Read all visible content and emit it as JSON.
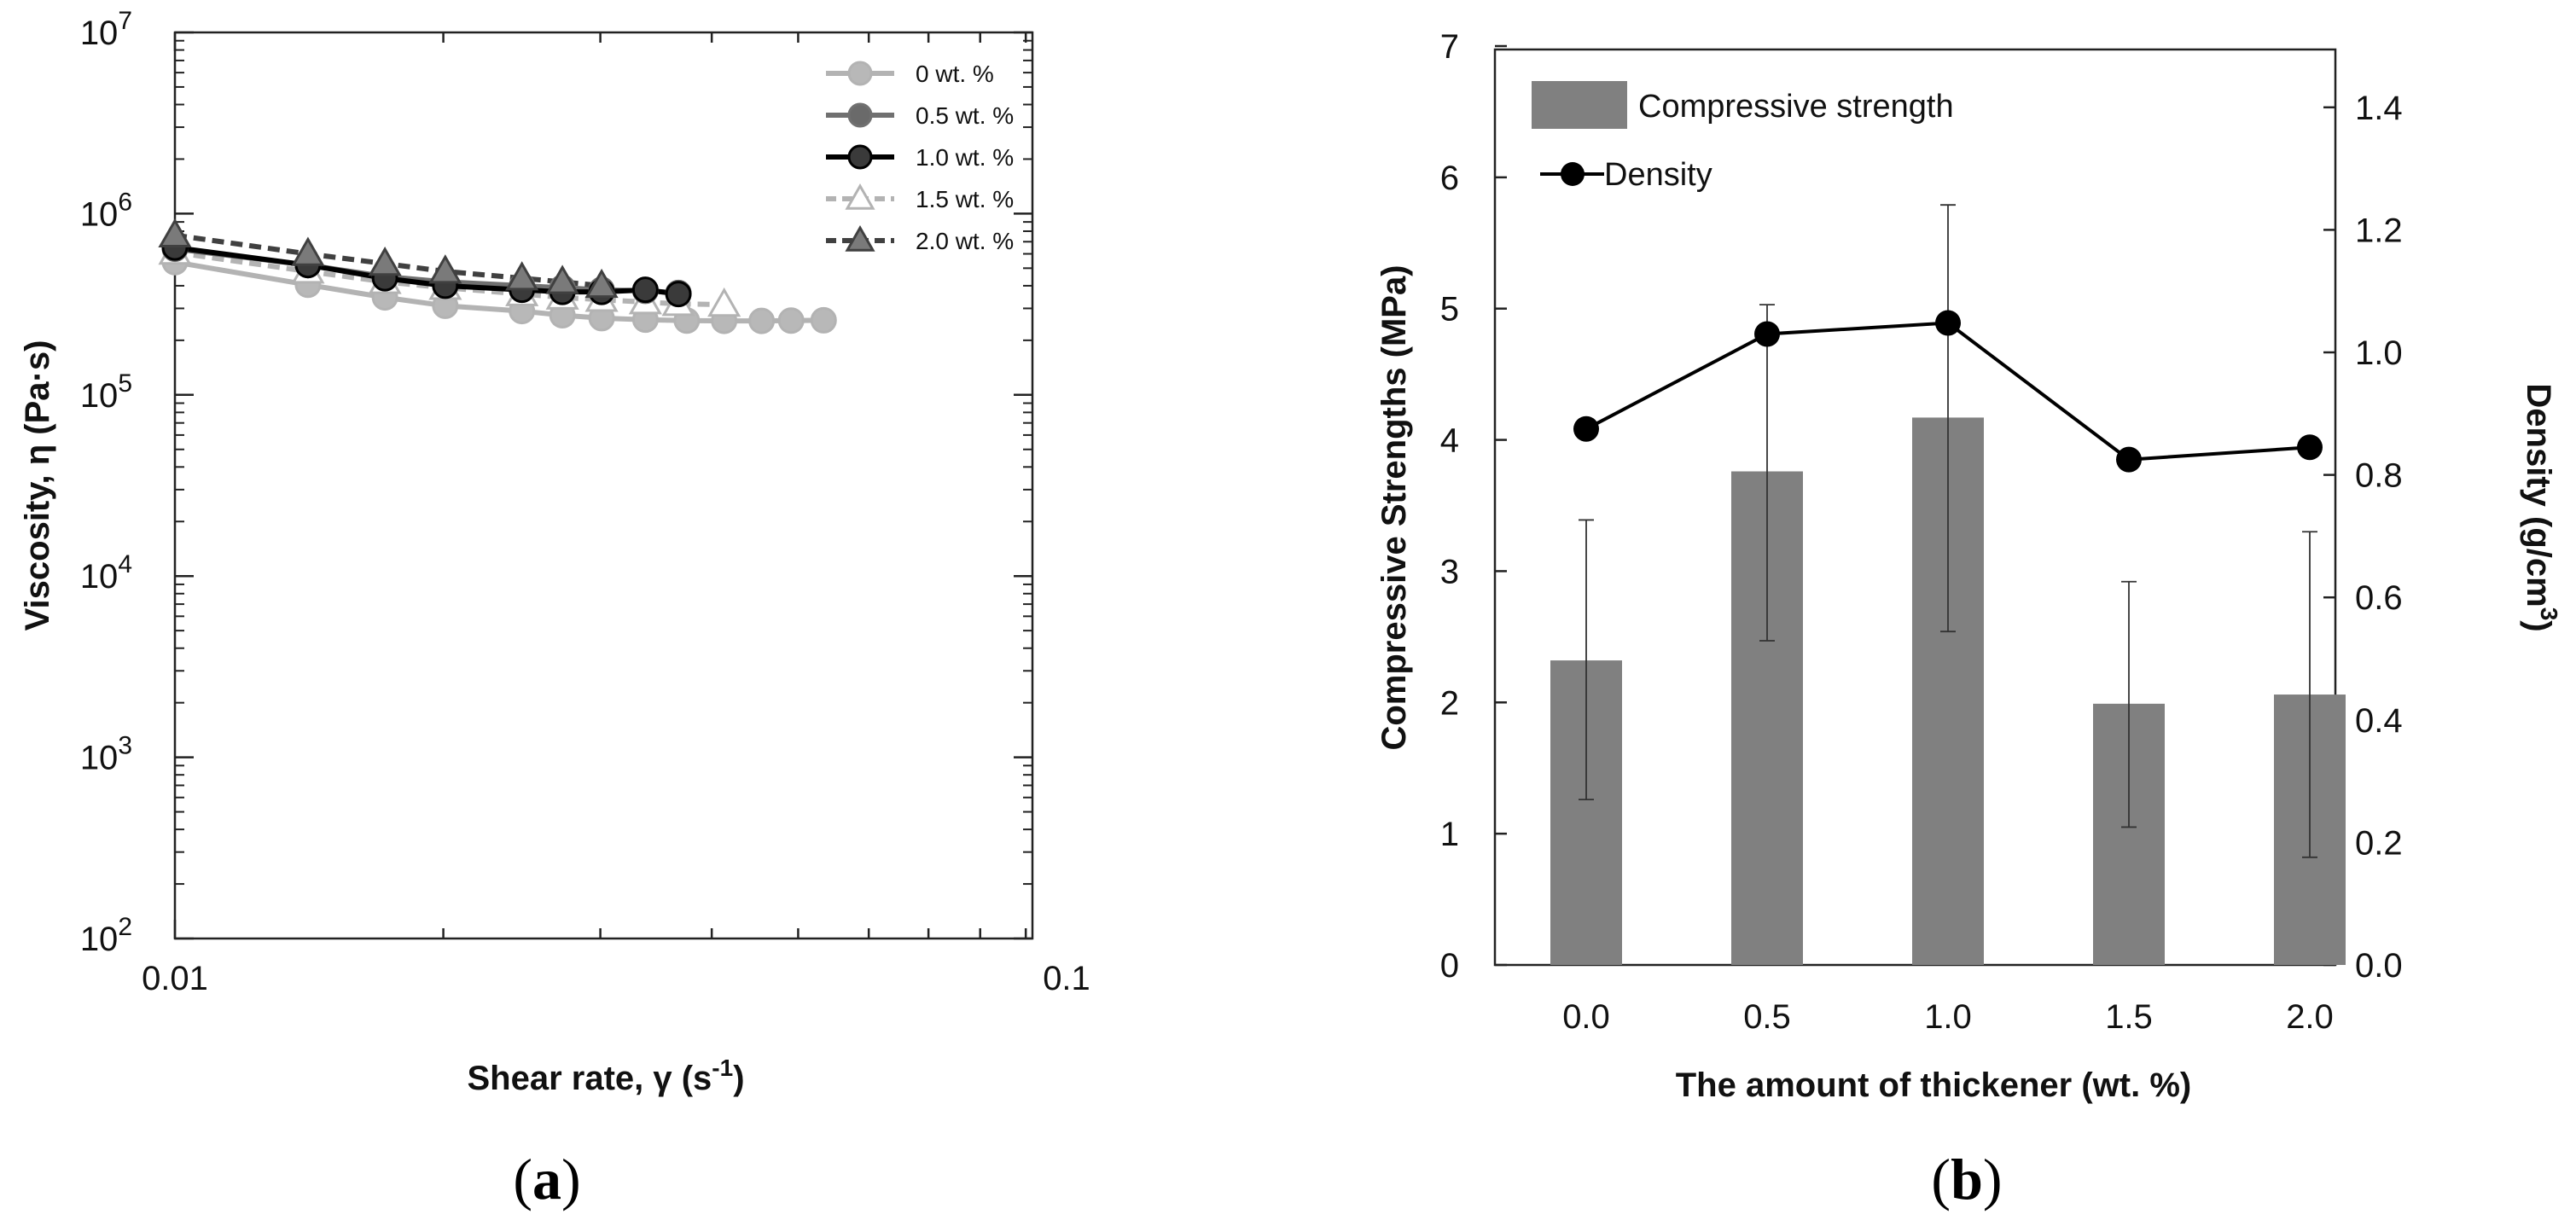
{
  "figure": {
    "panel_a_label": "(a)",
    "panel_a_letter": "a",
    "panel_b_label": "(b)",
    "panel_b_letter": "b"
  },
  "chart_data": [
    {
      "type": "line",
      "panel": "a",
      "xscale": "log",
      "yscale": "log",
      "xlabel": "Shear rate, γ (s",
      "xlabel_sup": "-1",
      "xlabel_close": ")",
      "ylabel": "Viscosity, η (Pa·s)",
      "xlim": [
        0.01,
        0.1
      ],
      "ylim": [
        100,
        10000000
      ],
      "x_ticks": [
        {
          "value": 0.01,
          "label": "0.01"
        },
        {
          "value": 0.1,
          "label": "0.1"
        }
      ],
      "y_ticks": [
        {
          "value": 100,
          "base": "10",
          "exp": "2"
        },
        {
          "value": 1000,
          "base": "10",
          "exp": "3"
        },
        {
          "value": 10000,
          "base": "10",
          "exp": "4"
        },
        {
          "value": 100000,
          "base": "10",
          "exp": "5"
        },
        {
          "value": 1000000,
          "base": "10",
          "exp": "6"
        },
        {
          "value": 10000000,
          "base": "10",
          "exp": "7"
        }
      ],
      "legend_position": "top-right",
      "series": [
        {
          "name": "0 wt. %",
          "color": "#b3b3b3",
          "fill": "#b8b8b8",
          "marker": "circle",
          "dash": "none",
          "x": [
            0.01,
            0.0141,
            0.0172,
            0.0201,
            0.0245,
            0.0272,
            0.0301,
            0.0337,
            0.0375,
            0.0413,
            0.0455,
            0.0491,
            0.0534
          ],
          "y": [
            540000,
            405000,
            345000,
            310000,
            290000,
            275000,
            265000,
            260000,
            257000,
            256000,
            256000,
            257000,
            258000
          ]
        },
        {
          "name": "0.5 wt. %",
          "color": "#707070",
          "fill": "#6a6a6a",
          "marker": "circle",
          "dash": "none",
          "x": [
            0.01,
            0.0141,
            0.0172,
            0.0201,
            0.0245,
            0.0272,
            0.0301,
            0.0337,
            0.0367
          ],
          "y": [
            640000,
            520000,
            450000,
            420000,
            400000,
            390000,
            380000,
            375000,
            365000
          ]
        },
        {
          "name": "1.0 wt. %",
          "color": "#000000",
          "fill": "#3a3a3a",
          "marker": "circle",
          "dash": "none",
          "x": [
            0.01,
            0.0141,
            0.0172,
            0.0201,
            0.0245,
            0.0272,
            0.0301,
            0.0337,
            0.0367
          ],
          "y": [
            650000,
            520000,
            440000,
            400000,
            380000,
            370000,
            370000,
            380000,
            360000
          ]
        },
        {
          "name": "1.5 wt. %",
          "color": "#b3b3b3",
          "fill": "#ffffff",
          "marker": "triangle",
          "dash": "dashed",
          "x": [
            0.01,
            0.0141,
            0.0172,
            0.0201,
            0.0245,
            0.0272,
            0.0301,
            0.0337,
            0.0367,
            0.0413
          ],
          "y": [
            610000,
            480000,
            420000,
            390000,
            360000,
            345000,
            335000,
            325000,
            318000,
            315000
          ]
        },
        {
          "name": "2.0 wt. %",
          "color": "#404040",
          "fill": "#7a7a7a",
          "marker": "triangle",
          "dash": "dashed",
          "x": [
            0.01,
            0.0141,
            0.0172,
            0.0201,
            0.0245,
            0.0272,
            0.0301
          ],
          "y": [
            760000,
            600000,
            530000,
            480000,
            440000,
            420000,
            400000
          ]
        }
      ]
    },
    {
      "type": "bar",
      "panel": "b",
      "xlabel": "The amount of thickener (wt. %)",
      "ylabel": "Compressive Strengths (MPa)",
      "y2label": "Density (g/cm",
      "y2label_sup": "3",
      "y2label_close": ")",
      "categories": [
        "0.0",
        "0.5",
        "1.0",
        "1.5",
        "2.0"
      ],
      "ylim": [
        0,
        7
      ],
      "y2lim": [
        0,
        1.5
      ],
      "y_ticks": [
        "0",
        "1",
        "2",
        "3",
        "4",
        "5",
        "6",
        "7"
      ],
      "y2_ticks": [
        "0.0",
        "0.2",
        "0.4",
        "0.6",
        "0.8",
        "1.0",
        "1.2",
        "1.4"
      ],
      "legend_position": "top-left",
      "series": [
        {
          "name": "Compressive strength",
          "type": "bar",
          "axis": "left",
          "color": "#808080",
          "values": [
            2.32,
            3.76,
            4.17,
            1.99,
            2.06
          ],
          "error_low": [
            1.26,
            2.47,
            2.54,
            1.05,
            0.82
          ],
          "error_high": [
            3.39,
            5.03,
            5.79,
            2.92,
            3.3
          ]
        },
        {
          "name": "Density",
          "type": "line",
          "axis": "right",
          "color": "#000000",
          "marker": "circle",
          "values": [
            0.875,
            1.03,
            1.048,
            0.825,
            0.845
          ]
        }
      ]
    }
  ]
}
